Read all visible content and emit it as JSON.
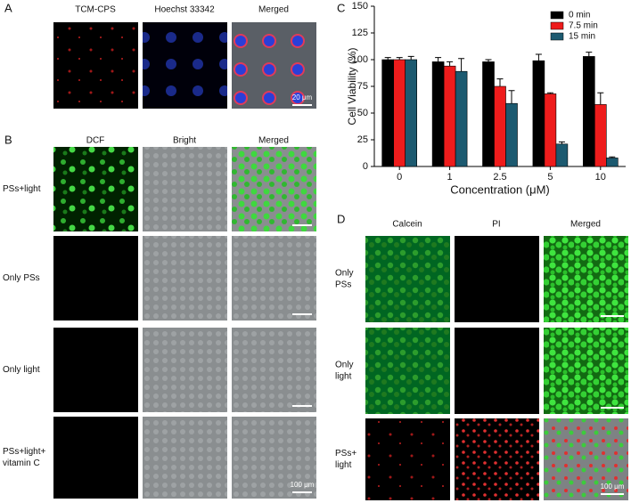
{
  "panels": {
    "A": {
      "label": "A",
      "columns": [
        "TCM-CPS",
        "Hoechst 33342",
        "Merged"
      ],
      "scale_bar": "20 μm"
    },
    "B": {
      "label": "B",
      "columns": [
        "DCF",
        "Bright",
        "Merged"
      ],
      "rows": [
        [
          "PSs+light"
        ],
        [
          "Only PSs"
        ],
        [
          "Only light"
        ],
        [
          "PSs+light+",
          "vitamin C"
        ]
      ],
      "scale_bar": "100 μm"
    },
    "C": {
      "label": "C"
    },
    "D": {
      "label": "D",
      "columns": [
        "Calcein",
        "PI",
        "Merged"
      ],
      "rows": [
        [
          "Only",
          "PSs"
        ],
        [
          "Only",
          "light"
        ],
        [
          "PSs+",
          "light"
        ]
      ],
      "scale_bar": "100 μm"
    }
  },
  "chart_data": {
    "type": "bar",
    "x_label": "Concentration (μM)",
    "y_label": "Cell Viability (%)",
    "categories": [
      "0",
      "1",
      "2.5",
      "5",
      "10"
    ],
    "series": [
      {
        "name": "0 min",
        "color": "#000000",
        "values": [
          100,
          98,
          98,
          99,
          103
        ],
        "errors": [
          2,
          4,
          2,
          6,
          4
        ]
      },
      {
        "name": "7.5 min",
        "color": "#ee1c1c",
        "values": [
          100,
          94,
          75,
          68,
          58
        ],
        "errors": [
          2,
          4,
          7,
          1,
          11
        ]
      },
      {
        "name": "15 min",
        "color": "#1c5a70",
        "values": [
          100,
          89,
          59,
          21,
          8
        ],
        "errors": [
          3,
          12,
          12,
          2,
          1
        ]
      }
    ],
    "ylim": [
      0,
      150
    ],
    "yticks": [
      0,
      25,
      50,
      75,
      100,
      125,
      150
    ],
    "legend": "upper right"
  }
}
